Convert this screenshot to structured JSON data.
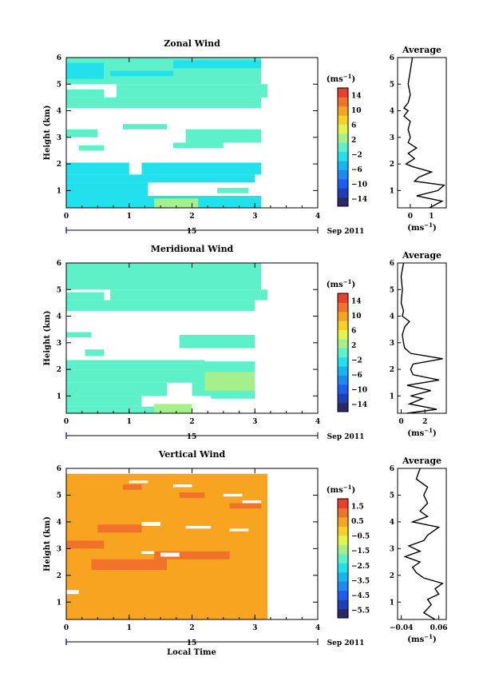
{
  "colormap": [
    "#2b2a66",
    "#1d3fb8",
    "#1f5cf0",
    "#1e88f5",
    "#17b4f2",
    "#22e0ec",
    "#5ef0c9",
    "#a5f08d",
    "#e2f54a",
    "#f6d127",
    "#f7a521",
    "#f1722a",
    "#e8402f"
  ],
  "chart_data": [
    {
      "id": "zonal",
      "type": "heatmap",
      "title": "Zonal Wind",
      "ylabel": "Height (km)",
      "unit_label": "(ms",
      "unit_sup": "−1",
      "xticks": [
        "0",
        "1",
        "2",
        "3",
        "4"
      ],
      "xlim": [
        0,
        4
      ],
      "yticks": [
        "1",
        "2",
        "3",
        "4",
        "5",
        "6"
      ],
      "ylim": [
        0.35,
        6.0
      ],
      "date_label": "15",
      "month_label": "Sep 2011",
      "colorbar_ticks": [
        "14",
        "10",
        "6",
        "2",
        "−2",
        "−6",
        "−10",
        "−14"
      ],
      "colorbar_range": [
        -16,
        16
      ],
      "patches": [
        {
          "t0": 0.0,
          "t1": 3.1,
          "h0": 0.35,
          "h1": 0.8,
          "v": -3
        },
        {
          "t0": 0.0,
          "t1": 1.3,
          "h0": 0.8,
          "h1": 1.3,
          "v": -3
        },
        {
          "t0": 1.4,
          "t1": 2.1,
          "h0": 0.35,
          "h1": 0.7,
          "v": 2
        },
        {
          "t0": 2.4,
          "t1": 2.9,
          "h0": 0.9,
          "h1": 1.1,
          "v": -1
        },
        {
          "t0": 0.0,
          "t1": 3.0,
          "h0": 1.3,
          "h1": 1.6,
          "v": -3
        },
        {
          "t0": 0.0,
          "t1": 1.0,
          "h0": 1.6,
          "h1": 2.05,
          "v": -3
        },
        {
          "t0": 1.2,
          "t1": 3.1,
          "h0": 1.6,
          "h1": 2.05,
          "v": -3
        },
        {
          "t0": 0.2,
          "t1": 0.6,
          "h0": 2.5,
          "h1": 2.7,
          "v": -1
        },
        {
          "t0": 1.7,
          "t1": 2.5,
          "h0": 2.6,
          "h1": 2.8,
          "v": -1
        },
        {
          "t0": 1.9,
          "t1": 3.1,
          "h0": 2.8,
          "h1": 3.3,
          "v": -1
        },
        {
          "t0": 0.0,
          "t1": 0.5,
          "h0": 3.0,
          "h1": 3.3,
          "v": -1
        },
        {
          "t0": 0.9,
          "t1": 1.6,
          "h0": 3.3,
          "h1": 3.5,
          "v": -1
        },
        {
          "t0": 0.0,
          "t1": 3.1,
          "h0": 4.1,
          "h1": 4.5,
          "v": -1
        },
        {
          "t0": 0.0,
          "t1": 0.6,
          "h0": 4.5,
          "h1": 4.8,
          "v": -1
        },
        {
          "t0": 0.8,
          "t1": 3.2,
          "h0": 4.5,
          "h1": 5.0,
          "v": -1
        },
        {
          "t0": 0.0,
          "t1": 3.1,
          "h0": 5.0,
          "h1": 6.0,
          "v": -1
        },
        {
          "t0": 0.0,
          "t1": 0.6,
          "h0": 5.2,
          "h1": 5.8,
          "v": -3
        },
        {
          "t0": 0.7,
          "t1": 1.7,
          "h0": 5.3,
          "h1": 5.5,
          "v": -3
        },
        {
          "t0": 1.7,
          "t1": 3.1,
          "h0": 5.6,
          "h1": 5.9,
          "v": -3
        }
      ],
      "profile": {
        "title": "Average",
        "xticks": [
          "0",
          "1"
        ],
        "xlim": [
          -0.6,
          1.7
        ],
        "xtick_values": [
          0,
          1
        ],
        "heights": [
          0.35,
          0.6,
          0.8,
          1.0,
          1.2,
          1.35,
          1.5,
          1.7,
          1.9,
          2.0,
          2.2,
          2.4,
          2.6,
          2.7,
          2.8,
          3.0,
          3.3,
          3.6,
          3.8,
          4.0,
          4.1,
          4.3,
          4.6,
          5.0,
          5.5,
          6.0
        ],
        "values": [
          0.9,
          1.5,
          0.3,
          1.3,
          1.6,
          0.2,
          0.4,
          1.0,
          0.1,
          -0.2,
          0.2,
          -0.1,
          0.3,
          0.1,
          -0.1,
          0.0,
          -0.1,
          0.0,
          -0.3,
          -0.1,
          -0.3,
          -0.1,
          0.0,
          -0.1,
          0.0,
          0.1
        ]
      }
    },
    {
      "id": "meridional",
      "type": "heatmap",
      "title": "Meridional Wind",
      "ylabel": "Height (km)",
      "unit_label": "(ms",
      "unit_sup": "−1",
      "xticks": [
        "0",
        "1",
        "2",
        "3",
        "4"
      ],
      "xlim": [
        0,
        4
      ],
      "yticks": [
        "1",
        "2",
        "3",
        "4",
        "5",
        "6"
      ],
      "ylim": [
        0.35,
        6.0
      ],
      "date_label": "15",
      "month_label": "Sep 2011",
      "colorbar_ticks": [
        "14",
        "10",
        "6",
        "2",
        "−2",
        "−6",
        "−10",
        "−14"
      ],
      "colorbar_range": [
        -16,
        16
      ],
      "patches": [
        {
          "t0": 0.0,
          "t1": 1.5,
          "h0": 0.35,
          "h1": 0.6,
          "v": -1
        },
        {
          "t0": 1.4,
          "t1": 2.0,
          "h0": 0.35,
          "h1": 0.7,
          "v": 3
        },
        {
          "t0": 0.0,
          "t1": 1.2,
          "h0": 0.6,
          "h1": 1.0,
          "v": -1
        },
        {
          "t0": 2.3,
          "t1": 3.0,
          "h0": 0.9,
          "h1": 1.1,
          "v": -1
        },
        {
          "t0": 0.0,
          "t1": 1.6,
          "h0": 1.0,
          "h1": 1.5,
          "v": -1
        },
        {
          "t0": 0.0,
          "t1": 2.0,
          "h0": 1.5,
          "h1": 2.0,
          "v": -1
        },
        {
          "t0": 2.0,
          "t1": 3.0,
          "h0": 1.0,
          "h1": 2.3,
          "v": -1
        },
        {
          "t0": 2.2,
          "t1": 3.0,
          "h0": 1.2,
          "h1": 1.9,
          "v": 2
        },
        {
          "t0": 0.0,
          "t1": 2.2,
          "h0": 2.0,
          "h1": 2.35,
          "v": -1
        },
        {
          "t0": 0.3,
          "t1": 0.6,
          "h0": 2.5,
          "h1": 2.75,
          "v": 1
        },
        {
          "t0": 1.8,
          "t1": 3.0,
          "h0": 2.8,
          "h1": 3.3,
          "v": -1
        },
        {
          "t0": 0.0,
          "t1": 0.4,
          "h0": 3.2,
          "h1": 3.4,
          "v": -1
        },
        {
          "t0": 0.0,
          "t1": 3.0,
          "h0": 4.2,
          "h1": 4.6,
          "v": -1
        },
        {
          "t0": 0.0,
          "t1": 0.6,
          "h0": 4.6,
          "h1": 4.9,
          "v": -1
        },
        {
          "t0": 0.7,
          "t1": 3.2,
          "h0": 4.6,
          "h1": 5.0,
          "v": -1
        },
        {
          "t0": 0.0,
          "t1": 3.1,
          "h0": 5.0,
          "h1": 6.0,
          "v": -1
        }
      ],
      "profile": {
        "title": "Average",
        "xticks": [
          "0",
          "2"
        ],
        "xlim": [
          -0.3,
          3.8
        ],
        "xtick_values": [
          0,
          2
        ],
        "heights": [
          0.35,
          0.5,
          0.7,
          0.9,
          1.0,
          1.2,
          1.4,
          1.6,
          1.8,
          2.0,
          2.2,
          2.4,
          2.6,
          2.8,
          3.0,
          3.3,
          3.6,
          3.8,
          4.0,
          4.2,
          4.5,
          5.0,
          5.5,
          6.0
        ],
        "values": [
          0.5,
          3.0,
          0.7,
          1.8,
          0.8,
          2.5,
          0.5,
          3.2,
          1.0,
          0.8,
          1.0,
          3.5,
          0.8,
          0.3,
          0.2,
          0.1,
          0.3,
          0.7,
          0.1,
          0.2,
          0.0,
          0.1,
          0.0,
          0.2
        ]
      }
    },
    {
      "id": "vertical",
      "type": "heatmap",
      "title": "Vertical Wind",
      "ylabel": "Height (km)",
      "xlabel": "Local Time",
      "unit_label": "(ms",
      "unit_sup": "−1",
      "xticks": [
        "0",
        "1",
        "2",
        "3",
        "4"
      ],
      "xlim": [
        0,
        4
      ],
      "yticks": [
        "1",
        "2",
        "3",
        "4",
        "5",
        "6"
      ],
      "ylim": [
        0.35,
        6.0
      ],
      "date_label": "15",
      "month_label": "Sep 2011",
      "colorbar_ticks": [
        "1.5",
        "0.5",
        "−0.5",
        "−1.5",
        "−2.5",
        "−3.5",
        "−4.5",
        "−5.5"
      ],
      "colorbar_range": [
        -6,
        2
      ],
      "patches": [
        {
          "t0": 0.0,
          "t1": 3.2,
          "h0": 0.35,
          "h1": 5.8,
          "v": 0.6
        },
        {
          "t0": 0.4,
          "t1": 1.6,
          "h0": 2.2,
          "h1": 2.6,
          "v": 1.3
        },
        {
          "t0": 1.4,
          "t1": 2.6,
          "h0": 2.6,
          "h1": 2.9,
          "v": 1.3
        },
        {
          "t0": 0.0,
          "t1": 0.6,
          "h0": 3.0,
          "h1": 3.3,
          "v": 1.3
        },
        {
          "t0": 0.5,
          "t1": 1.2,
          "h0": 3.6,
          "h1": 3.9,
          "v": 1.3
        },
        {
          "t0": 2.6,
          "t1": 3.1,
          "h0": 4.5,
          "h1": 4.7,
          "v": 1.3
        },
        {
          "t0": 1.8,
          "t1": 2.2,
          "h0": 4.9,
          "h1": 5.1,
          "v": 1.3
        },
        {
          "t0": 0.9,
          "t1": 1.2,
          "h0": 5.2,
          "h1": 5.4,
          "v": 1.3
        }
      ],
      "gaps": [
        {
          "t0": 1.0,
          "t1": 1.3,
          "h0": 5.45,
          "h1": 5.55
        },
        {
          "t0": 1.7,
          "t1": 2.0,
          "h0": 5.3,
          "h1": 5.4
        },
        {
          "t0": 2.5,
          "t1": 2.8,
          "h0": 4.95,
          "h1": 5.05
        },
        {
          "t0": 2.8,
          "t1": 3.1,
          "h0": 4.7,
          "h1": 4.8
        },
        {
          "t0": 1.2,
          "t1": 1.5,
          "h0": 3.85,
          "h1": 4.0
        },
        {
          "t0": 1.9,
          "t1": 2.3,
          "h0": 3.75,
          "h1": 3.85
        },
        {
          "t0": 2.6,
          "t1": 2.9,
          "h0": 3.65,
          "h1": 3.75
        },
        {
          "t0": 1.5,
          "t1": 1.8,
          "h0": 2.7,
          "h1": 2.85
        },
        {
          "t0": 1.2,
          "t1": 1.4,
          "h0": 2.8,
          "h1": 2.9
        },
        {
          "t0": 0.0,
          "t1": 0.2,
          "h0": 1.3,
          "h1": 1.45
        }
      ],
      "profile": {
        "title": "Average",
        "xticks": [
          "−0.04",
          "0.06"
        ],
        "xlim": [
          -0.05,
          0.08
        ],
        "xtick_values": [
          -0.04,
          0.06
        ],
        "heights": [
          0.35,
          0.6,
          0.9,
          1.1,
          1.3,
          1.5,
          1.7,
          1.9,
          2.1,
          2.3,
          2.5,
          2.7,
          2.9,
          3.1,
          3.3,
          3.5,
          3.8,
          4.0,
          4.2,
          4.4,
          4.7,
          5.0,
          5.3,
          5.6,
          6.0
        ],
        "values": [
          0.05,
          0.02,
          0.04,
          0.03,
          0.06,
          0.05,
          0.07,
          0.02,
          0.0,
          -0.01,
          0.01,
          -0.03,
          0.01,
          -0.02,
          0.02,
          0.03,
          0.06,
          -0.01,
          0.03,
          0.01,
          0.03,
          0.02,
          0.03,
          0.0,
          0.01
        ]
      }
    }
  ]
}
